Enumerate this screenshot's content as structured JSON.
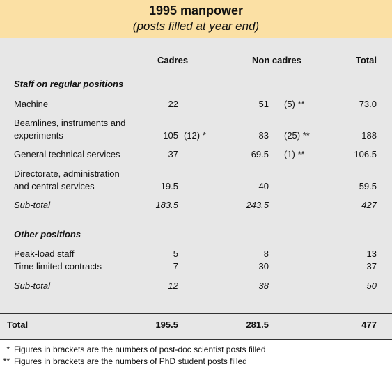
{
  "title": "1995 manpower",
  "subtitle": "(posts filled at year end)",
  "columns": {
    "cadres": "Cadres",
    "non_cadres": "Non cadres",
    "total": "Total"
  },
  "sections": [
    {
      "heading": "Staff on regular positions",
      "rows": [
        {
          "label": "Machine",
          "cadres": "22",
          "cadres_note": "",
          "non_cadres": "51",
          "non_cadres_note": "(5) **",
          "total": "73.0"
        },
        {
          "label_line1": "Beamlines, instruments and",
          "label_line2": "experiments",
          "cadres": "105",
          "cadres_note": "(12) *",
          "non_cadres": "83",
          "non_cadres_note": "(25) **",
          "total": "188"
        },
        {
          "label": "General technical services",
          "cadres": "37",
          "cadres_note": "",
          "non_cadres": "69.5",
          "non_cadres_note": "(1) **",
          "total": "106.5"
        },
        {
          "label_line1": "Directorate, administration",
          "label_line2": "and central services",
          "cadres": "19.5",
          "cadres_note": "",
          "non_cadres": "40",
          "non_cadres_note": "",
          "total": "59.5"
        }
      ],
      "subtotal": {
        "label": "Sub-total",
        "cadres": "183.5",
        "non_cadres": "243.5",
        "total": "427"
      }
    },
    {
      "heading": "Other positions",
      "rows": [
        {
          "label": "Peak-load staff",
          "cadres": "5",
          "non_cadres": "8",
          "total": "13"
        },
        {
          "label": "Time limited contracts",
          "cadres": "7",
          "non_cadres": "30",
          "total": "37"
        }
      ],
      "subtotal": {
        "label": "Sub-total",
        "cadres": "12",
        "non_cadres": "38",
        "total": "50"
      }
    }
  ],
  "total": {
    "label": "Total",
    "cadres": "195.5",
    "non_cadres": "281.5",
    "total": "477"
  },
  "footnotes": [
    {
      "marker": "*",
      "text": "Figures in brackets are the numbers of post-doc scientist posts filled"
    },
    {
      "marker": "**",
      "text": "Figures in brackets are the numbers of PhD student posts filled"
    }
  ]
}
